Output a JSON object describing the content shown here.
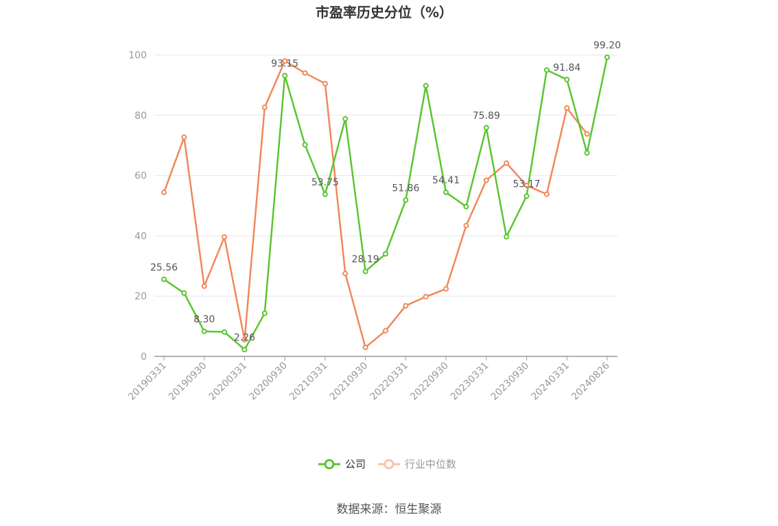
{
  "chart_data": {
    "type": "line",
    "title": "市盈率历史分位（%）",
    "ylim": [
      0,
      100
    ],
    "yticks": [
      0,
      20,
      40,
      60,
      80,
      100
    ],
    "x": [
      "20190331",
      "20190630",
      "20190930",
      "20191231",
      "20200331",
      "20200630",
      "20200930",
      "20201231",
      "20210331",
      "20210630",
      "20210930",
      "20211231",
      "20220331",
      "20220630",
      "20220930",
      "20221231",
      "20230331",
      "20230630",
      "20230930",
      "20231231",
      "20240331",
      "20240630",
      "20240826"
    ],
    "xtick_labels": [
      "20190331",
      "20190930",
      "20200331",
      "20200930",
      "20210331",
      "20210930",
      "20220331",
      "20220930",
      "20230331",
      "20230930",
      "20240331",
      "20240826"
    ],
    "series": [
      {
        "name": "公司",
        "color": "#5ac530",
        "values": [
          25.56,
          21.0,
          8.3,
          8.1,
          2.26,
          14.3,
          93.15,
          70.2,
          53.75,
          78.8,
          28.19,
          34.0,
          51.86,
          89.8,
          54.41,
          49.7,
          75.89,
          39.7,
          53.17,
          95.0,
          91.84,
          67.5,
          99.2
        ],
        "labels": {
          "0": "25.56",
          "2": "8.30",
          "4": "2.26",
          "6": "93.15",
          "8": "53.75",
          "10": "28.19",
          "12": "51.86",
          "14": "54.41",
          "16": "75.89",
          "18": "53.17",
          "20": "91.84",
          "22": "99.20"
        }
      },
      {
        "name": "行业中位数",
        "color": "#f0885a",
        "values": [
          54.4,
          72.7,
          23.3,
          39.6,
          5.5,
          82.6,
          98.0,
          94.0,
          90.5,
          27.5,
          3.0,
          8.5,
          16.8,
          19.8,
          22.4,
          43.4,
          58.4,
          64.1,
          56.7,
          53.8,
          82.4,
          73.8,
          null
        ]
      }
    ],
    "grid": true,
    "legend": "bottom-center",
    "source": "数据来源：恒生聚源"
  }
}
